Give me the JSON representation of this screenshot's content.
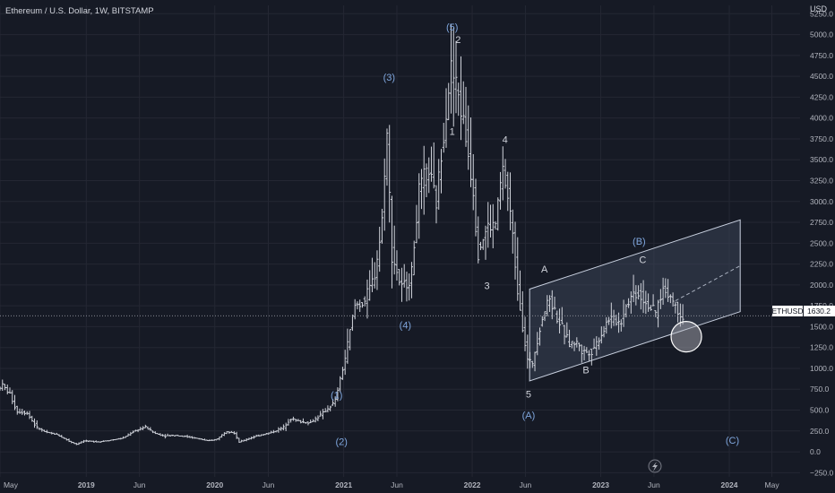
{
  "header": {
    "title": "Ethereum / U.S. Dollar, 1W, BITSTAMP",
    "currency": "USD"
  },
  "colors": {
    "background": "#161a25",
    "grid": "#242733",
    "candle": "#d1d4dc",
    "axis_text": "#b2b5be",
    "wave_label_blue": "#7fa6dd",
    "wave_label_white": "#d1d4dc",
    "channel_fill": "#3a4356",
    "channel_stroke": "#c9d1e0",
    "price_tag_bg": "#ffffff",
    "price_tag_text": "#131722"
  },
  "chart_data": {
    "type": "candlestick",
    "title": "Ethereum / U.S. Dollar, 1W, BITSTAMP",
    "x_ticks": [
      "May",
      "2019",
      "Jun",
      "2020",
      "Jun",
      "2021",
      "Jun",
      "2022",
      "Jun",
      "2023",
      "Jun",
      "2024",
      "May"
    ],
    "x_tick_dates": [
      "2018-05-01",
      "2019-01-01",
      "2019-06-01",
      "2020-01-01",
      "2020-06-01",
      "2021-01-01",
      "2021-06-01",
      "2022-01-01",
      "2022-06-01",
      "2023-01-01",
      "2023-06-01",
      "2024-01-01",
      "2024-05-01"
    ],
    "y_ticks": [
      -250,
      0,
      250,
      500,
      750,
      1000,
      1250,
      1500,
      1750,
      2000,
      2250,
      2500,
      2750,
      3000,
      3250,
      3500,
      3750,
      4000,
      4250,
      4500,
      4750,
      5000,
      5250
    ],
    "y_tick_labels": [
      "−250.0",
      "0.0",
      "250.0",
      "500.0",
      "750.0",
      "1000.0",
      "1250.0",
      "1500.0",
      "1750.0",
      "2000.0",
      "2250.0",
      "2500.0",
      "2750.0",
      "3000.0",
      "3250.0",
      "3500.0",
      "3750.0",
      "4000.0",
      "4250.0",
      "4500.0",
      "4750.0",
      "5000.0",
      "5250.0"
    ],
    "ylim": [
      -300,
      5350
    ],
    "xlim": [
      "2018-05-01",
      "2024-07-20"
    ],
    "current_price": {
      "symbol": "ETHUSD",
      "value": 1630.2,
      "label": "1630.2"
    },
    "price_path": [
      [
        "2018-05-01",
        760
      ],
      [
        "2018-05-14",
        800
      ],
      [
        "2018-06-04",
        700
      ],
      [
        "2018-06-25",
        480
      ],
      [
        "2018-07-23",
        470
      ],
      [
        "2018-08-20",
        290
      ],
      [
        "2018-09-17",
        230
      ],
      [
        "2018-10-15",
        210
      ],
      [
        "2018-11-19",
        130
      ],
      [
        "2018-12-10",
        90
      ],
      [
        "2018-12-31",
        130
      ],
      [
        "2019-02-11",
        120
      ],
      [
        "2019-03-18",
        140
      ],
      [
        "2019-04-22",
        165
      ],
      [
        "2019-05-20",
        240
      ],
      [
        "2019-06-24",
        300
      ],
      [
        "2019-07-22",
        220
      ],
      [
        "2019-08-19",
        190
      ],
      [
        "2019-09-16",
        200
      ],
      [
        "2019-10-21",
        180
      ],
      [
        "2019-11-25",
        155
      ],
      [
        "2019-12-16",
        130
      ],
      [
        "2020-01-13",
        150
      ],
      [
        "2020-02-10",
        250
      ],
      [
        "2020-03-02",
        230
      ],
      [
        "2020-03-16",
        115
      ],
      [
        "2020-04-13",
        160
      ],
      [
        "2020-05-18",
        205
      ],
      [
        "2020-06-15",
        230
      ],
      [
        "2020-07-20",
        290
      ],
      [
        "2020-08-10",
        400
      ],
      [
        "2020-09-07",
        360
      ],
      [
        "2020-10-05",
        350
      ],
      [
        "2020-11-09",
        460
      ],
      [
        "2020-12-14",
        600
      ],
      [
        "2021-01-11",
        1100
      ],
      [
        "2021-02-08",
        1750
      ],
      [
        "2021-03-08",
        1800
      ],
      [
        "2021-04-05",
        2100
      ],
      [
        "2021-04-26",
        2700
      ],
      [
        "2021-05-10",
        3900
      ],
      [
        "2021-05-24",
        2400
      ],
      [
        "2021-06-21",
        1950
      ],
      [
        "2021-07-19",
        2100
      ],
      [
        "2021-08-09",
        3100
      ],
      [
        "2021-09-06",
        3400
      ],
      [
        "2021-09-27",
        2950
      ],
      [
        "2021-10-18",
        3800
      ],
      [
        "2021-11-08",
        4600
      ],
      [
        "2021-11-29",
        4300
      ],
      [
        "2021-12-20",
        3800
      ],
      [
        "2022-01-10",
        3200
      ],
      [
        "2022-01-24",
        2400
      ],
      [
        "2022-02-21",
        2700
      ],
      [
        "2022-03-14",
        2700
      ],
      [
        "2022-04-04",
        3400
      ],
      [
        "2022-04-25",
        2900
      ],
      [
        "2022-05-16",
        2000
      ],
      [
        "2022-06-13",
        1100
      ],
      [
        "2022-06-27",
        1050
      ],
      [
        "2022-07-25",
        1600
      ],
      [
        "2022-08-15",
        1850
      ],
      [
        "2022-09-12",
        1550
      ],
      [
        "2022-10-10",
        1300
      ],
      [
        "2022-11-07",
        1300
      ],
      [
        "2022-11-14",
        1200
      ],
      [
        "2022-12-12",
        1200
      ],
      [
        "2023-01-09",
        1400
      ],
      [
        "2023-01-30",
        1600
      ],
      [
        "2023-03-06",
        1550
      ],
      [
        "2023-03-20",
        1750
      ],
      [
        "2023-04-10",
        1900
      ],
      [
        "2023-04-24",
        1900
      ],
      [
        "2023-05-15",
        1800
      ],
      [
        "2023-06-12",
        1650
      ],
      [
        "2023-07-03",
        1950
      ],
      [
        "2023-07-24",
        1870
      ],
      [
        "2023-08-14",
        1700
      ],
      [
        "2023-08-28",
        1630
      ]
    ],
    "channel": {
      "upper": [
        [
          "2022-06-13",
          1950
        ],
        [
          "2024-02-01",
          2780
        ]
      ],
      "lower": [
        [
          "2022-06-13",
          850
        ],
        [
          "2024-02-01",
          1680
        ]
      ],
      "midline_dashed": [
        [
          "2023-08-01",
          1810
        ],
        [
          "2024-02-01",
          2230
        ]
      ]
    },
    "target_circle": {
      "date": "2023-09-01",
      "price": 1380
    },
    "dotted_price_line": 1630.2,
    "wave_labels": [
      {
        "text": "(1)",
        "date": "2020-12-12",
        "price": 640,
        "color": "blue"
      },
      {
        "text": "(2)",
        "date": "2020-12-26",
        "price": 80,
        "color": "blue"
      },
      {
        "text": "(3)",
        "date": "2021-05-10",
        "price": 4450,
        "color": "blue"
      },
      {
        "text": "(4)",
        "date": "2021-06-25",
        "price": 1480,
        "color": "blue"
      },
      {
        "text": "(5)",
        "date": "2021-11-05",
        "price": 5050,
        "color": "blue"
      },
      {
        "text": "2",
        "date": "2021-11-22",
        "price": 4900,
        "color": "white"
      },
      {
        "text": "1",
        "date": "2021-11-05",
        "price": 3800,
        "color": "white"
      },
      {
        "text": "4",
        "date": "2022-04-04",
        "price": 3700,
        "color": "white"
      },
      {
        "text": "3",
        "date": "2022-02-12",
        "price": 1950,
        "color": "white"
      },
      {
        "text": "5",
        "date": "2022-06-10",
        "price": 650,
        "color": "white"
      },
      {
        "text": "(A)",
        "date": "2022-06-10",
        "price": 400,
        "color": "blue"
      },
      {
        "text": "A",
        "date": "2022-07-25",
        "price": 2150,
        "color": "white"
      },
      {
        "text": "B",
        "date": "2022-11-20",
        "price": 940,
        "color": "white"
      },
      {
        "text": "(B)",
        "date": "2023-04-20",
        "price": 2480,
        "color": "blue"
      },
      {
        "text": "C",
        "date": "2023-04-30",
        "price": 2260,
        "color": "white"
      },
      {
        "text": "(C)",
        "date": "2024-01-10",
        "price": 100,
        "color": "blue"
      }
    ]
  }
}
